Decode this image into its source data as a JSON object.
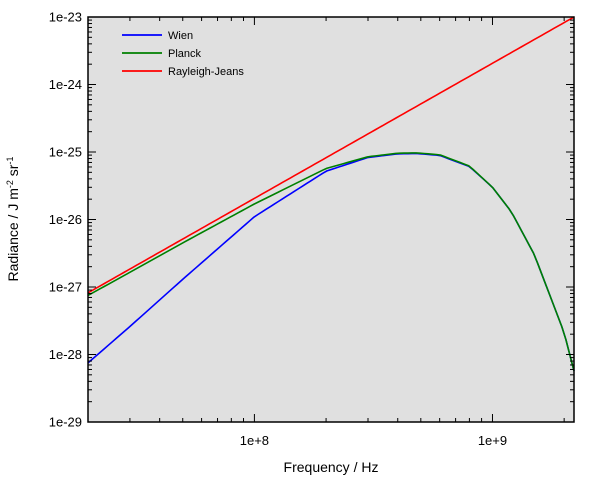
{
  "chart_data": {
    "type": "line",
    "xlabel": "Frequency / Hz",
    "ylabel": {
      "base": "Radiance / J m",
      "exp1": "-2",
      "mid": " sr",
      "exp2": "-1"
    },
    "xscale": "log",
    "yscale": "log",
    "xlim": [
      20000000,
      2200000000
    ],
    "ylim": [
      1e-29,
      1e-23
    ],
    "x_ticks": [
      {
        "value": 100000000,
        "label": "1e+8"
      },
      {
        "value": 1000000000,
        "label": "1e+9"
      }
    ],
    "y_ticks": [
      {
        "value": 1e-23,
        "label": "1e-23"
      },
      {
        "value": 1e-24,
        "label": "1e-24"
      },
      {
        "value": 1e-25,
        "label": "1e-25"
      },
      {
        "value": 1e-26,
        "label": "1e-26"
      },
      {
        "value": 1e-27,
        "label": "1e-27"
      },
      {
        "value": 1e-28,
        "label": "1e-28"
      },
      {
        "value": 1e-29,
        "label": "1e-29"
      }
    ],
    "grid": false,
    "legend_position": "top-left",
    "plot_background": "#e0e0e0",
    "series": [
      {
        "name": "Wien",
        "color": "#0000ff",
        "x": [
          20000000,
          30000000,
          50000000,
          100000000,
          200000000,
          300000000,
          400000000,
          480000000,
          600000000,
          800000000,
          1000000000,
          1200000000,
          1500000000,
          2000000000,
          2200000000
        ],
        "y": [
          7.5e-29,
          2.6e-28,
          1.3e-27,
          1.1e-26,
          5.2e-26,
          8.3e-26,
          9.4e-26,
          9.5e-26,
          8.9e-26,
          6.1e-26,
          3e-26,
          1.3e-26,
          3e-27,
          2.1e-28,
          5.7e-29
        ]
      },
      {
        "name": "Planck",
        "color": "#008000",
        "x": [
          20000000,
          30000000,
          50000000,
          100000000,
          200000000,
          300000000,
          400000000,
          480000000,
          600000000,
          800000000,
          1000000000,
          1200000000,
          1500000000,
          2000000000,
          2200000000
        ],
        "y": [
          7.5e-28,
          1.65e-27,
          4.5e-27,
          1.7e-26,
          5.7e-26,
          8.5e-26,
          9.6e-26,
          9.7e-26,
          9.1e-26,
          6.2e-26,
          3e-26,
          1.3e-26,
          3e-27,
          2.1e-28,
          5.7e-29
        ]
      },
      {
        "name": "Rayleigh-Jeans",
        "color": "#ff0000",
        "x": [
          20000000,
          2200000000
        ],
        "y": [
          8.2e-28,
          1e-23
        ]
      }
    ]
  }
}
